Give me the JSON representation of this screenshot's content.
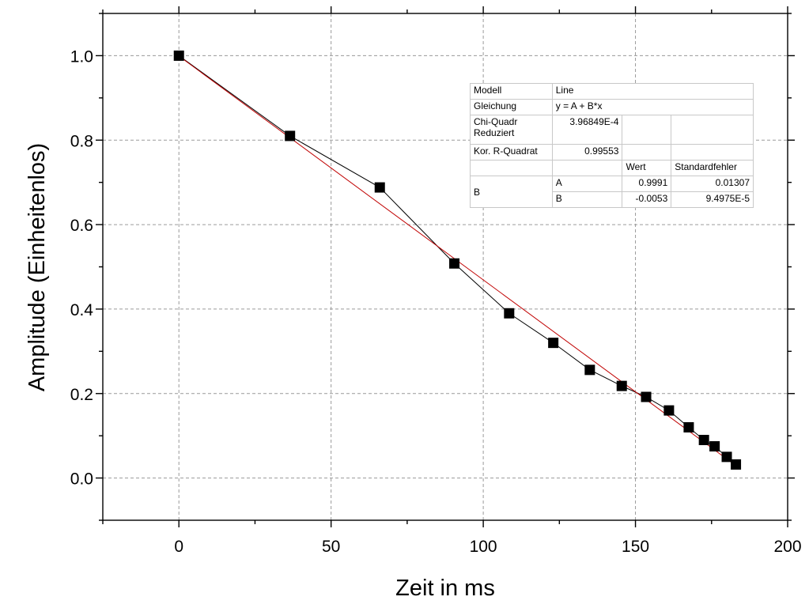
{
  "chart_data": {
    "type": "scatter",
    "title": "",
    "xlabel": "Zeit in ms",
    "ylabel": "Amplitude (Einheitenlos)",
    "xlim": [
      -25,
      200
    ],
    "ylim": [
      -0.1,
      1.1
    ],
    "x_ticks": [
      0,
      50,
      100,
      150,
      200
    ],
    "y_ticks": [
      0.0,
      0.2,
      0.4,
      0.6,
      0.8,
      1.0
    ],
    "x_tick_labels": [
      "0",
      "50",
      "100",
      "150",
      "200"
    ],
    "y_tick_labels": [
      "0.0",
      "0.2",
      "0.4",
      "0.6",
      "0.8",
      "1.0"
    ],
    "grid": true,
    "series": [
      {
        "type": "line+markers",
        "marker": "square",
        "color": "#000000",
        "x": [
          0,
          36.5,
          66,
          90.5,
          108.5,
          123,
          135,
          145.5,
          153.5,
          161,
          167.5,
          172.5,
          176,
          180,
          183
        ],
        "y": [
          1.0,
          0.81,
          0.688,
          0.508,
          0.39,
          0.32,
          0.256,
          0.218,
          0.192,
          0.16,
          0.12,
          0.09,
          0.075,
          0.05,
          0.032
        ]
      },
      {
        "type": "fit-line",
        "color": "#c00000",
        "intercept": 0.9991,
        "slope": -0.0053,
        "x_range": [
          0,
          183
        ]
      }
    ]
  },
  "fit_table": {
    "model_label": "Modell",
    "model_value": "Line",
    "equation_label": "Gleichung",
    "equation_value": "y = A + B*x",
    "chi_label_1": "Chi-Quadr",
    "chi_label_2": "Reduziert",
    "chi_value": "3.96849E-4",
    "r2_label": "Kor. R-Quadrat",
    "r2_value": "0.99553",
    "col_value": "Wert",
    "col_error": "Standardfehler",
    "param_group": "B",
    "row_a_name": "A",
    "row_a_value": "0.9991",
    "row_a_error": "0.01307",
    "row_b_name": "B",
    "row_b_value": "-0.0053",
    "row_b_error": "9.4975E-5"
  }
}
